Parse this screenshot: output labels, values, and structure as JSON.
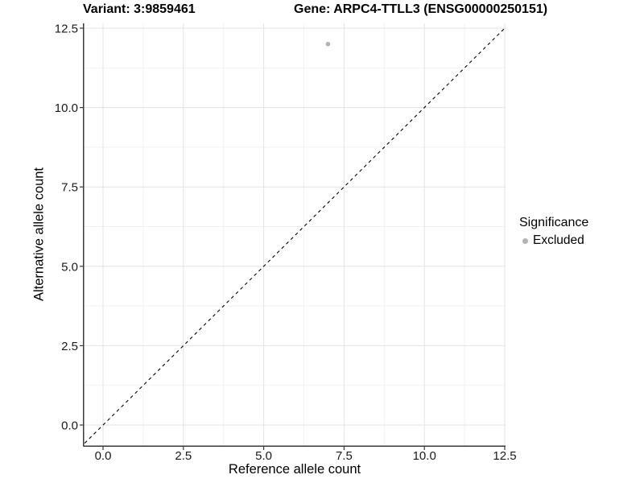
{
  "chart_data": {
    "type": "scatter",
    "title_left": "Variant: 3:9859461",
    "title_right": "Gene: ARPC4-TTLL3 (ENSG00000250151)",
    "xlabel": "Reference allele count",
    "ylabel": "Alternative allele count",
    "x_ticks": [
      0,
      2.5,
      5,
      7.5,
      10,
      12.5
    ],
    "y_ticks": [
      0,
      2.5,
      5,
      7.5,
      10,
      12.5
    ],
    "x_tick_labels": [
      "0.0",
      "2.5",
      "5.0",
      "7.5",
      "10.0",
      "12.5"
    ],
    "y_tick_labels": [
      "0.0",
      "2.5",
      "5.0",
      "7.5",
      "10.0",
      "12.5"
    ],
    "xlim": [
      -0.65,
      12.55
    ],
    "ylim": [
      -0.67,
      12.65
    ],
    "grid": true,
    "grid_minor": true,
    "reference_line": {
      "kind": "identity-diagonal",
      "style": "dashed",
      "color": "#000000"
    },
    "series": [
      {
        "name": "Excluded",
        "color": "#b3b3b3",
        "points": [
          {
            "x": 7,
            "y": 12
          }
        ]
      }
    ],
    "legend": {
      "title": "Significance",
      "position": "right",
      "entries": [
        {
          "label": "Excluded",
          "color": "#b3b3b3"
        }
      ]
    },
    "colors": {
      "background": "#ffffff",
      "grid_major": "#e3e3e3",
      "grid_minor": "#f1f1f1",
      "axis_line": "#3a3a3a",
      "tick_label": "#1a1a1a",
      "point": "#b3b3b3",
      "dashed_line": "#000000"
    }
  }
}
